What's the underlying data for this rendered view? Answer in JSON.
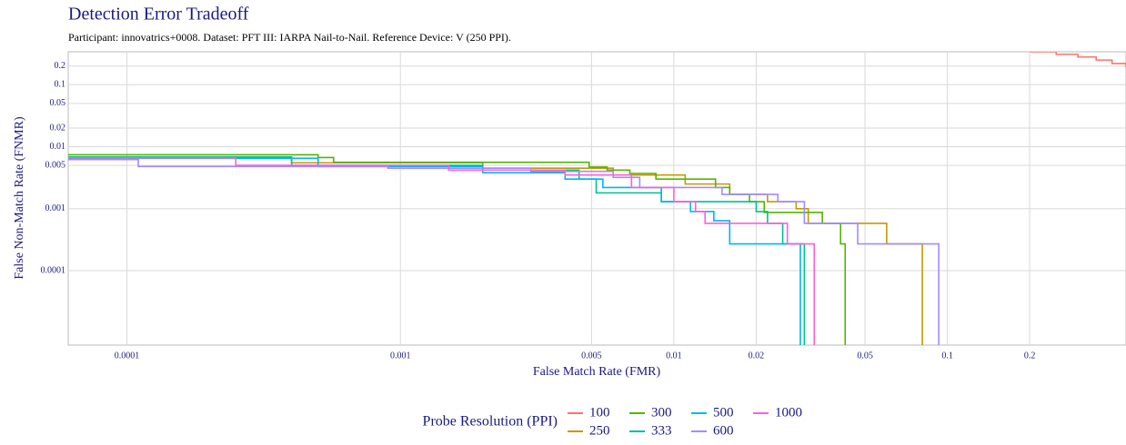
{
  "chart_data": {
    "type": "step",
    "title": "Detection Error Tradeoff",
    "subtitle": "Participant: innovatrics+0008. Dataset: PFT III: IARPA Nail-to-Nail. Reference Device: V (250 PPI).",
    "x_label": "False Match Rate (FMR)",
    "y_label": "False Non-Match Rate (FNMR)",
    "legend_title": "Probe Resolution (PPI)",
    "log_x": true,
    "log_y": true,
    "grid": true,
    "xlim": [
      6.1e-05,
      0.45
    ],
    "ylim": [
      6.3e-06,
      0.34
    ],
    "xticks": [
      0.0001,
      0.001,
      0.005,
      0.01,
      0.02,
      0.05,
      0.1,
      0.2
    ],
    "yticks": [
      0.0001,
      0.001,
      0.005,
      0.01,
      0.02,
      0.05,
      0.1,
      0.2
    ],
    "series": [
      {
        "name": "100",
        "color": "#F8766D",
        "x": [
          0.2,
          0.25,
          0.3,
          0.35,
          0.4,
          0.45
        ],
        "values": [
          0.34,
          0.31,
          0.28,
          0.25,
          0.22,
          0.19
        ]
      },
      {
        "name": "250",
        "color": "#C49A00",
        "x": [
          6.1e-05,
          0.0004,
          0.002,
          0.006,
          0.011,
          0.016,
          0.022,
          0.028,
          0.031,
          0.06,
          0.081
        ],
        "values": [
          0.0068,
          0.0055,
          0.0045,
          0.0035,
          0.0025,
          0.0017,
          0.0013,
          0.001,
          0.00058,
          0.00027,
          1e-06
        ]
      },
      {
        "name": "300",
        "color": "#53B400",
        "x": [
          6.1e-05,
          0.0005,
          0.00057,
          0.0049,
          0.0057,
          0.0069,
          0.0086,
          0.0142,
          0.016,
          0.0189,
          0.0214,
          0.0307,
          0.0349,
          0.0407,
          0.0423
        ],
        "values": [
          0.0074,
          0.0067,
          0.0056,
          0.0047,
          0.0042,
          0.0037,
          0.003,
          0.0022,
          0.0017,
          0.0013,
          0.00087,
          0.00087,
          0.00058,
          0.00027,
          1e-06
        ]
      },
      {
        "name": "333",
        "color": "#00C094",
        "x": [
          6.1e-05,
          0.0004,
          0.002,
          0.0045,
          0.0052,
          0.009,
          0.02,
          0.022,
          0.025,
          0.03
        ],
        "values": [
          0.0068,
          0.005,
          0.0042,
          0.003,
          0.0018,
          0.0013,
          0.0009,
          0.00058,
          0.00027,
          1e-06
        ]
      },
      {
        "name": "500",
        "color": "#00B6EB",
        "x": [
          6.1e-05,
          0.0005,
          0.002,
          0.004,
          0.0055,
          0.009,
          0.0115,
          0.014,
          0.016,
          0.029
        ],
        "values": [
          0.0065,
          0.0048,
          0.0038,
          0.003,
          0.0022,
          0.0013,
          0.0009,
          0.00064,
          0.00027,
          1e-06
        ]
      },
      {
        "name": "600",
        "color": "#A58AFF",
        "x": [
          6.1e-05,
          0.00011,
          0.0009,
          0.003,
          0.006,
          0.0075,
          0.015,
          0.024,
          0.03,
          0.047,
          0.093
        ],
        "values": [
          0.0062,
          0.0048,
          0.0045,
          0.004,
          0.0032,
          0.0022,
          0.0017,
          0.0013,
          0.00058,
          0.00027,
          1e-06
        ]
      },
      {
        "name": "1000",
        "color": "#FB61D7",
        "x": [
          6.1e-05,
          0.00025,
          0.0015,
          0.004,
          0.007,
          0.01,
          0.012,
          0.013,
          0.026,
          0.0326
        ],
        "values": [
          0.0066,
          0.005,
          0.0042,
          0.0035,
          0.0022,
          0.0013,
          0.0009,
          0.00058,
          0.00027,
          1e-06
        ]
      }
    ]
  }
}
